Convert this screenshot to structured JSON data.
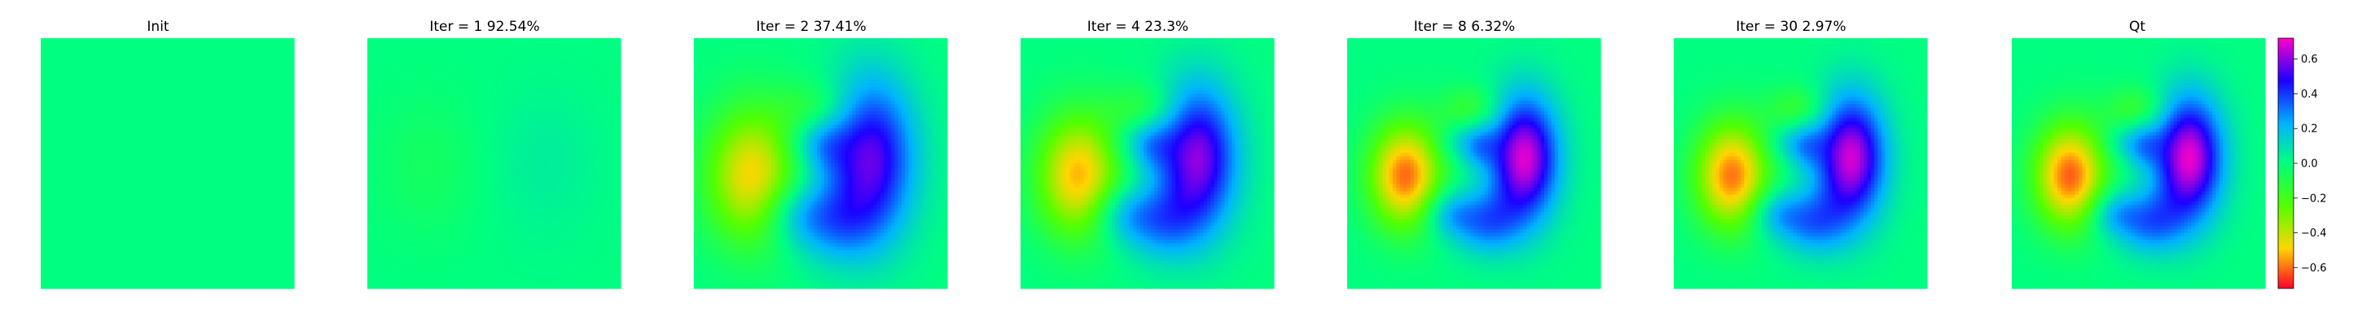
{
  "figure": {
    "panels": [
      {
        "title": "Init",
        "state": "init"
      },
      {
        "title": "Iter = 1    92.54%",
        "state": "iter1"
      },
      {
        "title": "Iter = 2    37.41%",
        "state": "iter2"
      },
      {
        "title": "Iter = 4    23.3%",
        "state": "iter4"
      },
      {
        "title": "Iter = 8    6.32%",
        "state": "iter8"
      },
      {
        "title": "Iter = 30    2.97%",
        "state": "iter30"
      },
      {
        "title": "Qt",
        "state": "target"
      }
    ]
  },
  "chart_data": {
    "type": "heatmap",
    "panel_titles": [
      "Init",
      "Iter = 1    92.54%",
      "Iter = 2    37.41%",
      "Iter = 4    23.3%",
      "Iter = 8    6.32%",
      "Iter = 30    2.97%",
      "Qt"
    ],
    "iterations": [
      1,
      2,
      4,
      8,
      30
    ],
    "relative_error_percent": [
      92.54,
      37.41,
      23.3,
      6.32,
      2.97
    ],
    "colorbar": {
      "colormap": "gist_rainbow-like (red → yellow → green → cyan → blue → magenta)",
      "vmin": -0.72,
      "vmax": 0.72,
      "ticks": [
        0.6,
        0.4,
        0.2,
        0.0,
        -0.2,
        -0.4,
        -0.6
      ],
      "tick_labels": [
        "0.6",
        "0.4",
        "0.2",
        "0.0",
        "−0.2",
        "−0.4",
        "−0.6"
      ]
    },
    "axes_visible": false
  }
}
